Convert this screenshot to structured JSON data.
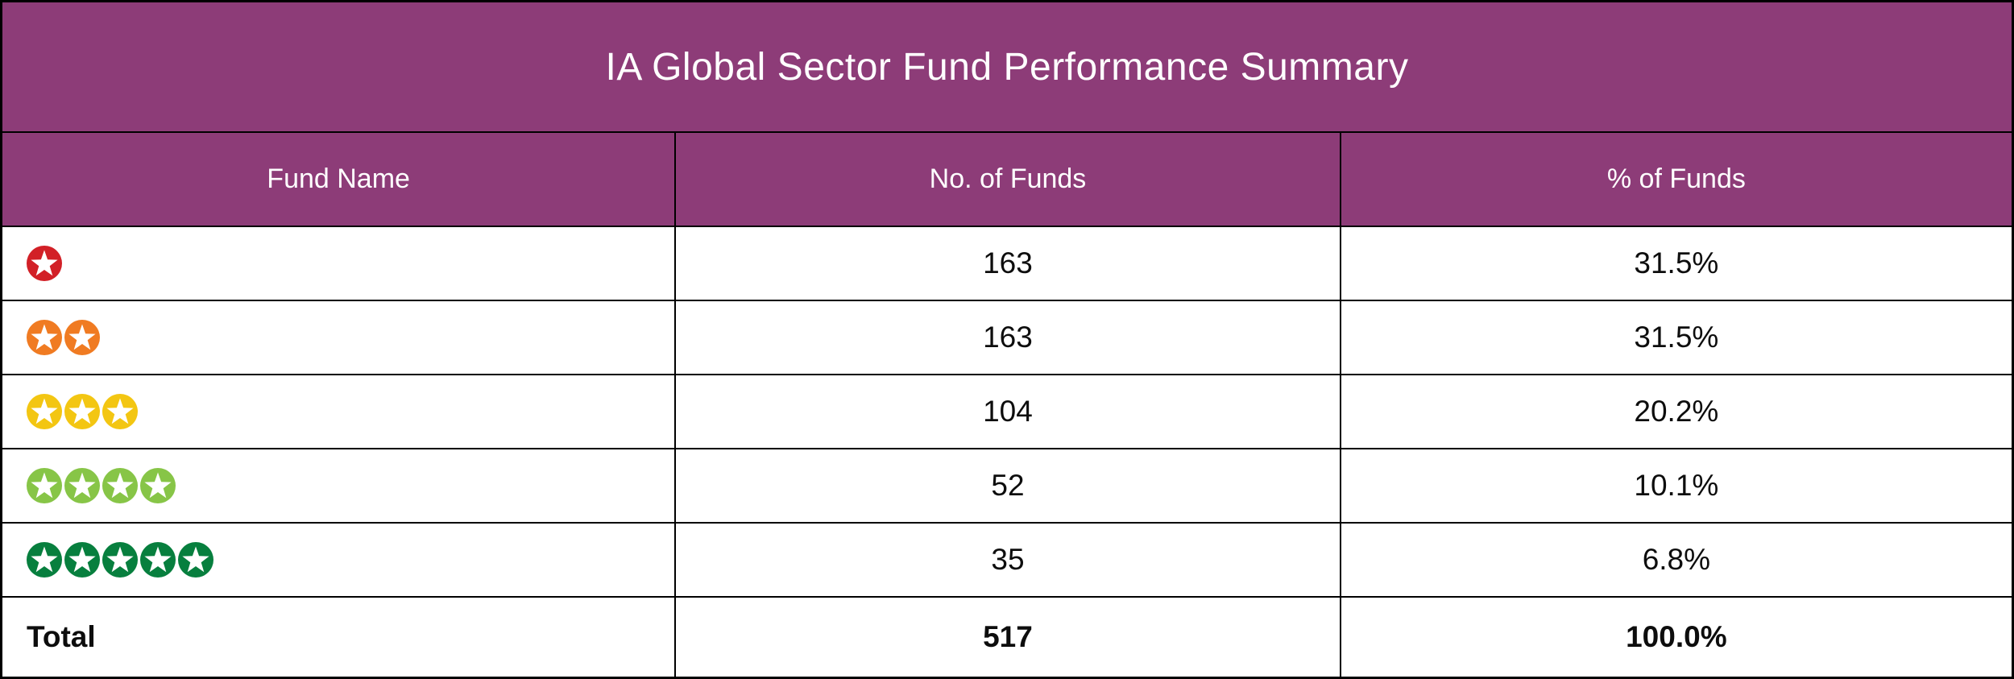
{
  "title": "IA Global Sector Fund Performance Summary",
  "colors": {
    "header_bg": "#8D3C78",
    "header_text": "#FFFFFF",
    "border": "#000000",
    "body_bg": "#FFFFFF",
    "body_text": "#0D0D0D",
    "star_white": "#FFFFFF",
    "star_1_red": "#D22027",
    "star_2_orange": "#F07B22",
    "star_3_yellow": "#F3C612",
    "star_4_light_green": "#87C547",
    "star_5_dark_green": "#077F3E"
  },
  "table": {
    "columns": [
      "Fund Name",
      "No. of Funds",
      "% of Funds"
    ],
    "rows": [
      {
        "rating_label": "1 star",
        "stars": 1,
        "star_color": "#D22027",
        "num_funds": "163",
        "pct_funds": "31.5%"
      },
      {
        "rating_label": "2 stars",
        "stars": 2,
        "star_color": "#F07B22",
        "num_funds": "163",
        "pct_funds": "31.5%"
      },
      {
        "rating_label": "3 stars",
        "stars": 3,
        "star_color": "#F3C612",
        "num_funds": "104",
        "pct_funds": "20.2%"
      },
      {
        "rating_label": "4 stars",
        "stars": 4,
        "star_color": "#87C547",
        "num_funds": "52",
        "pct_funds": "10.1%"
      },
      {
        "rating_label": "5 stars",
        "stars": 5,
        "star_color": "#077F3E",
        "num_funds": "35",
        "pct_funds": "6.8%"
      }
    ],
    "total": {
      "label": "Total",
      "num_funds": "517",
      "pct_funds": "100.0%"
    }
  },
  "chart_data": {
    "type": "table",
    "title": "IA Global Sector Fund Performance Summary",
    "columns": [
      "Fund Name",
      "No. of Funds",
      "% of Funds"
    ],
    "rows": [
      {
        "fund_rating_stars": 1,
        "no_of_funds": 163,
        "pct_of_funds": 31.5
      },
      {
        "fund_rating_stars": 2,
        "no_of_funds": 163,
        "pct_of_funds": 31.5
      },
      {
        "fund_rating_stars": 3,
        "no_of_funds": 104,
        "pct_of_funds": 20.2
      },
      {
        "fund_rating_stars": 4,
        "no_of_funds": 52,
        "pct_of_funds": 10.1
      },
      {
        "fund_rating_stars": 5,
        "no_of_funds": 35,
        "pct_of_funds": 6.8
      }
    ],
    "total": {
      "no_of_funds": 517,
      "pct_of_funds": 100.0
    }
  }
}
